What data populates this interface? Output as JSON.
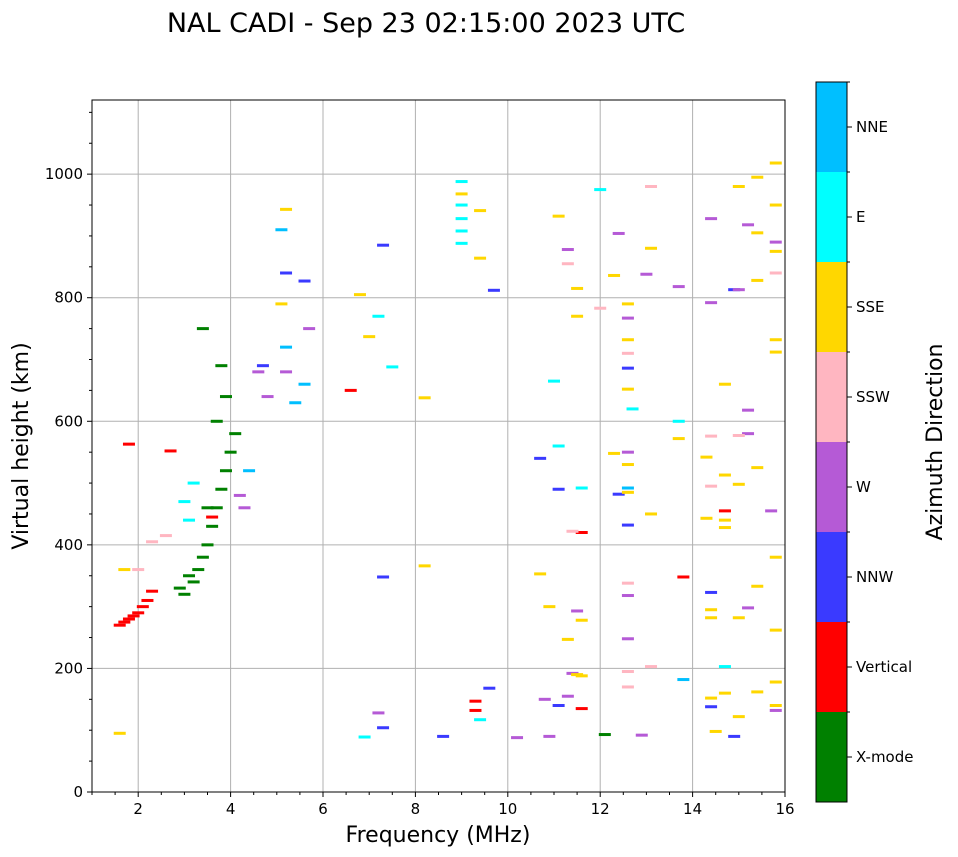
{
  "chart_data": {
    "type": "scatter",
    "title": "NAL CADI - Sep 23 02:15:00 2023 UTC",
    "xlabel": "Frequency (MHz)",
    "ylabel": "Virtual height (km)",
    "xlim": [
      1,
      16
    ],
    "ylim": [
      0,
      1120
    ],
    "xticks": [
      2,
      4,
      6,
      8,
      10,
      12,
      14,
      16
    ],
    "yticks": [
      0,
      200,
      400,
      600,
      800,
      1000
    ],
    "grid": true,
    "colorbar": {
      "label": "Azimuth Direction",
      "categories": [
        "X-mode",
        "Vertical",
        "NNW",
        "W",
        "SSW",
        "SSE",
        "E",
        "NNE"
      ],
      "colors": [
        "#008000",
        "#ff0000",
        "#3a3aff",
        "#b55ad6",
        "#ffb6c1",
        "#ffd700",
        "#00ffff",
        "#00bfff"
      ]
    },
    "series": [
      {
        "name": "X-mode",
        "points": [
          [
            3.0,
            320
          ],
          [
            3.2,
            340
          ],
          [
            3.3,
            360
          ],
          [
            3.4,
            380
          ],
          [
            3.5,
            400
          ],
          [
            3.6,
            430
          ],
          [
            3.7,
            460
          ],
          [
            3.8,
            490
          ],
          [
            3.9,
            520
          ],
          [
            4.0,
            550
          ],
          [
            4.1,
            580
          ],
          [
            3.9,
            640
          ],
          [
            3.8,
            690
          ],
          [
            3.4,
            750
          ],
          [
            12.1,
            93
          ],
          [
            2.9,
            330
          ],
          [
            3.1,
            350
          ],
          [
            3.5,
            460
          ],
          [
            3.7,
            600
          ]
        ]
      },
      {
        "name": "Vertical",
        "points": [
          [
            1.6,
            270
          ],
          [
            1.7,
            275
          ],
          [
            1.8,
            280
          ],
          [
            1.9,
            285
          ],
          [
            2.0,
            290
          ],
          [
            2.1,
            300
          ],
          [
            2.2,
            310
          ],
          [
            2.3,
            325
          ],
          [
            1.8,
            563
          ],
          [
            2.7,
            552
          ],
          [
            3.6,
            445
          ],
          [
            6.6,
            650
          ],
          [
            9.3,
            147
          ],
          [
            9.3,
            132
          ],
          [
            11.6,
            135
          ],
          [
            11.6,
            420
          ],
          [
            13.8,
            348
          ],
          [
            14.7,
            455
          ]
        ]
      },
      {
        "name": "NNW",
        "points": [
          [
            5.2,
            840
          ],
          [
            4.7,
            690
          ],
          [
            5.6,
            827
          ],
          [
            7.3,
            885
          ],
          [
            9.6,
            168
          ],
          [
            9.7,
            812
          ],
          [
            10.7,
            540
          ],
          [
            11.1,
            490
          ],
          [
            11.1,
            140
          ],
          [
            12.4,
            482
          ],
          [
            12.6,
            432
          ],
          [
            12.6,
            686
          ],
          [
            14.4,
            138
          ],
          [
            14.4,
            323
          ],
          [
            14.9,
            813
          ],
          [
            14.9,
            90
          ],
          [
            8.6,
            90
          ],
          [
            7.3,
            348
          ],
          [
            7.3,
            104
          ]
        ]
      },
      {
        "name": "W",
        "points": [
          [
            4.2,
            480
          ],
          [
            4.3,
            460
          ],
          [
            4.6,
            680
          ],
          [
            4.8,
            640
          ],
          [
            5.2,
            680
          ],
          [
            5.7,
            750
          ],
          [
            11.3,
            878
          ],
          [
            12.4,
            904
          ],
          [
            12.6,
            767
          ],
          [
            12.6,
            550
          ],
          [
            12.6,
            318
          ],
          [
            12.6,
            248
          ],
          [
            13.0,
            838
          ],
          [
            13.7,
            818
          ],
          [
            14.4,
            928
          ],
          [
            14.4,
            792
          ],
          [
            15.0,
            813
          ],
          [
            15.2,
            918
          ],
          [
            15.2,
            618
          ],
          [
            15.2,
            580
          ],
          [
            15.2,
            298
          ],
          [
            15.7,
            455
          ],
          [
            15.8,
            890
          ],
          [
            15.8,
            132
          ],
          [
            12.9,
            92
          ],
          [
            11.5,
            293
          ],
          [
            11.4,
            192
          ],
          [
            11.3,
            155
          ],
          [
            10.8,
            150
          ],
          [
            7.2,
            128
          ],
          [
            10.2,
            88
          ],
          [
            10.9,
            90
          ]
        ]
      },
      {
        "name": "SSW",
        "points": [
          [
            2.3,
            405
          ],
          [
            2.6,
            415
          ],
          [
            2.0,
            360
          ],
          [
            12.0,
            783
          ],
          [
            12.6,
            710
          ],
          [
            12.6,
            338
          ],
          [
            12.6,
            195
          ],
          [
            12.6,
            170
          ],
          [
            13.1,
            980
          ],
          [
            13.1,
            203
          ],
          [
            14.4,
            576
          ],
          [
            14.4,
            495
          ],
          [
            15.0,
            577
          ],
          [
            15.8,
            840
          ],
          [
            11.4,
            422
          ],
          [
            11.3,
            855
          ]
        ]
      },
      {
        "name": "SSE",
        "points": [
          [
            1.6,
            95
          ],
          [
            1.7,
            360
          ],
          [
            5.2,
            943
          ],
          [
            5.1,
            790
          ],
          [
            6.8,
            805
          ],
          [
            7.0,
            737
          ],
          [
            8.2,
            638
          ],
          [
            8.2,
            366
          ],
          [
            9.0,
            968
          ],
          [
            9.4,
            941
          ],
          [
            9.4,
            864
          ],
          [
            10.7,
            353
          ],
          [
            10.9,
            300
          ],
          [
            11.1,
            932
          ],
          [
            11.3,
            247
          ],
          [
            11.5,
            815
          ],
          [
            11.5,
            770
          ],
          [
            11.6,
            278
          ],
          [
            11.6,
            188
          ],
          [
            12.3,
            836
          ],
          [
            12.3,
            548
          ],
          [
            12.6,
            790
          ],
          [
            12.6,
            732
          ],
          [
            12.6,
            652
          ],
          [
            12.6,
            530
          ],
          [
            12.6,
            485
          ],
          [
            13.1,
            880
          ],
          [
            13.1,
            450
          ],
          [
            13.7,
            572
          ],
          [
            14.3,
            542
          ],
          [
            14.3,
            443
          ],
          [
            14.4,
            295
          ],
          [
            14.4,
            282
          ],
          [
            14.4,
            152
          ],
          [
            14.5,
            98
          ],
          [
            14.7,
            660
          ],
          [
            14.7,
            513
          ],
          [
            14.7,
            440
          ],
          [
            14.7,
            428
          ],
          [
            14.7,
            160
          ],
          [
            15.0,
            980
          ],
          [
            15.0,
            498
          ],
          [
            15.0,
            282
          ],
          [
            15.0,
            122
          ],
          [
            15.4,
            995
          ],
          [
            15.4,
            905
          ],
          [
            15.4,
            828
          ],
          [
            15.4,
            525
          ],
          [
            15.4,
            333
          ],
          [
            15.4,
            162
          ],
          [
            15.8,
            1018
          ],
          [
            15.8,
            950
          ],
          [
            15.8,
            875
          ],
          [
            15.8,
            732
          ],
          [
            15.8,
            712
          ],
          [
            15.8,
            380
          ],
          [
            15.8,
            262
          ],
          [
            15.8,
            178
          ],
          [
            15.8,
            140
          ],
          [
            11.5,
            190
          ]
        ]
      },
      {
        "name": "E",
        "points": [
          [
            3.0,
            470
          ],
          [
            3.2,
            500
          ],
          [
            3.1,
            440
          ],
          [
            9.0,
            988
          ],
          [
            9.0,
            950
          ],
          [
            9.0,
            928
          ],
          [
            9.0,
            908
          ],
          [
            9.0,
            888
          ],
          [
            7.5,
            688
          ],
          [
            7.2,
            770
          ],
          [
            11.0,
            665
          ],
          [
            11.1,
            560
          ],
          [
            11.6,
            492
          ],
          [
            12.0,
            975
          ],
          [
            12.7,
            620
          ],
          [
            13.7,
            600
          ],
          [
            14.7,
            203
          ],
          [
            9.4,
            117
          ],
          [
            6.9,
            89
          ]
        ]
      },
      {
        "name": "NNE",
        "points": [
          [
            5.1,
            910
          ],
          [
            5.4,
            630
          ],
          [
            5.6,
            660
          ],
          [
            5.2,
            720
          ],
          [
            12.6,
            492
          ],
          [
            13.8,
            182
          ],
          [
            4.4,
            520
          ]
        ]
      }
    ]
  }
}
